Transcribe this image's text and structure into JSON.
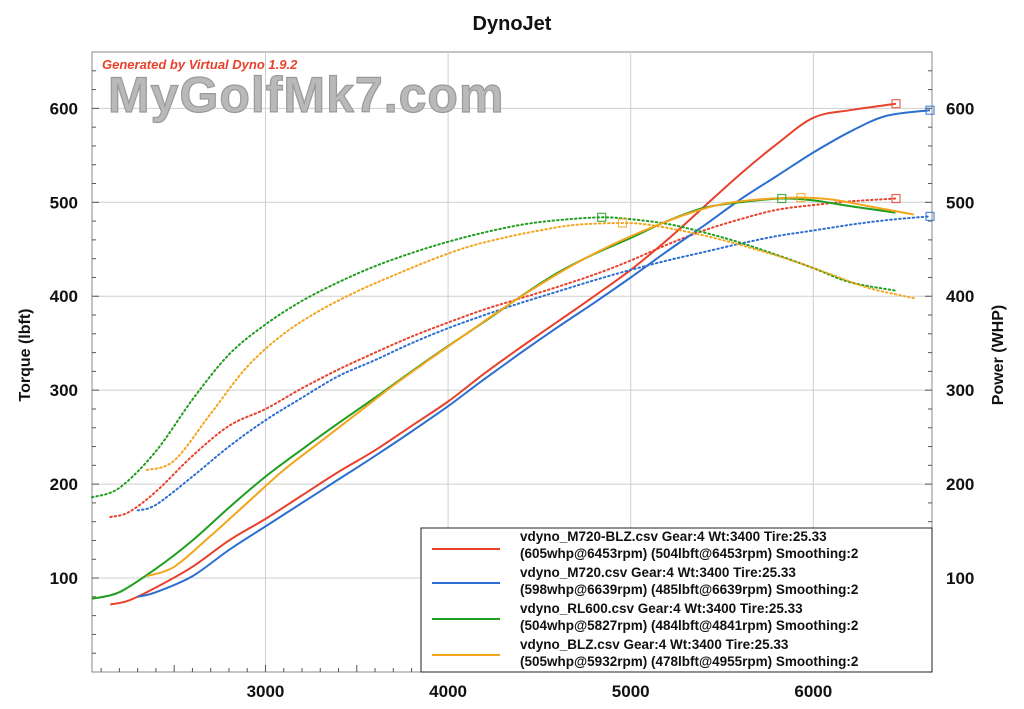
{
  "chart_data": {
    "type": "line",
    "title": "DynoJet",
    "generator": "Generated by Virtual Dyno 1.9.2",
    "watermark": "MyGolfMk7.com",
    "xlabel": "",
    "ylabel_left": "Torque (lbft)",
    "ylabel_right": "Power (WHP)",
    "xlim": [
      2050,
      6650
    ],
    "ylim": [
      0,
      660
    ],
    "x_ticks": [
      3000,
      4000,
      5000,
      6000
    ],
    "y_ticks": [
      100,
      200,
      300,
      400,
      500,
      600
    ],
    "grid": true,
    "legend_position": "bottom-right",
    "colors": {
      "red": "#e8412c",
      "blue": "#2c6fd1",
      "green": "#1f9e1f",
      "orange": "#f2a51d"
    },
    "series": [
      {
        "name": "vdyno_M720-BLZ.csv",
        "color": "#e8412c",
        "legend_line1": "vdyno_M720-BLZ.csv Gear:4 Wt:3400 Tire:25.33",
        "legend_line2": "(605whp@6453rpm) (504lbft@6453rpm) Smoothing:2",
        "power": [
          [
            2150,
            72
          ],
          [
            2250,
            76
          ],
          [
            2400,
            90
          ],
          [
            2600,
            112
          ],
          [
            2800,
            140
          ],
          [
            3000,
            163
          ],
          [
            3200,
            188
          ],
          [
            3400,
            213
          ],
          [
            3600,
            236
          ],
          [
            3800,
            262
          ],
          [
            4000,
            288
          ],
          [
            4200,
            318
          ],
          [
            4400,
            346
          ],
          [
            4600,
            373
          ],
          [
            4800,
            400
          ],
          [
            5000,
            428
          ],
          [
            5200,
            460
          ],
          [
            5400,
            495
          ],
          [
            5600,
            530
          ],
          [
            5800,
            562
          ],
          [
            6000,
            590
          ],
          [
            6200,
            598
          ],
          [
            6453,
            605
          ]
        ],
        "torque": [
          [
            2150,
            165
          ],
          [
            2250,
            170
          ],
          [
            2400,
            192
          ],
          [
            2600,
            230
          ],
          [
            2800,
            262
          ],
          [
            3000,
            280
          ],
          [
            3200,
            302
          ],
          [
            3400,
            322
          ],
          [
            3600,
            340
          ],
          [
            3800,
            357
          ],
          [
            4000,
            372
          ],
          [
            4200,
            386
          ],
          [
            4400,
            398
          ],
          [
            4600,
            410
          ],
          [
            4800,
            423
          ],
          [
            5000,
            438
          ],
          [
            5200,
            455
          ],
          [
            5400,
            470
          ],
          [
            5600,
            482
          ],
          [
            5800,
            492
          ],
          [
            6000,
            497
          ],
          [
            6200,
            501
          ],
          [
            6453,
            504
          ]
        ],
        "peak_power": [
          6453,
          605
        ],
        "peak_torque": [
          6453,
          504
        ]
      },
      {
        "name": "vdyno_M720.csv",
        "color": "#2c6fd1",
        "legend_line1": "vdyno_M720.csv Gear:4 Wt:3400 Tire:25.33",
        "legend_line2": "(598whp@6639rpm) (485lbft@6639rpm) Smoothing:2",
        "power": [
          [
            2300,
            80
          ],
          [
            2400,
            85
          ],
          [
            2600,
            102
          ],
          [
            2800,
            130
          ],
          [
            3000,
            155
          ],
          [
            3200,
            180
          ],
          [
            3400,
            205
          ],
          [
            3600,
            230
          ],
          [
            3800,
            256
          ],
          [
            4000,
            283
          ],
          [
            4200,
            312
          ],
          [
            4400,
            340
          ],
          [
            4600,
            367
          ],
          [
            4800,
            393
          ],
          [
            5000,
            420
          ],
          [
            5200,
            448
          ],
          [
            5400,
            475
          ],
          [
            5600,
            503
          ],
          [
            5800,
            528
          ],
          [
            6000,
            553
          ],
          [
            6200,
            575
          ],
          [
            6400,
            592
          ],
          [
            6639,
            598
          ]
        ],
        "torque": [
          [
            2300,
            172
          ],
          [
            2400,
            178
          ],
          [
            2600,
            208
          ],
          [
            2800,
            240
          ],
          [
            3000,
            268
          ],
          [
            3200,
            292
          ],
          [
            3400,
            315
          ],
          [
            3600,
            332
          ],
          [
            3800,
            350
          ],
          [
            4000,
            366
          ],
          [
            4200,
            380
          ],
          [
            4400,
            393
          ],
          [
            4600,
            405
          ],
          [
            4800,
            417
          ],
          [
            5000,
            428
          ],
          [
            5200,
            438
          ],
          [
            5400,
            447
          ],
          [
            5600,
            456
          ],
          [
            5800,
            464
          ],
          [
            6000,
            470
          ],
          [
            6200,
            476
          ],
          [
            6400,
            481
          ],
          [
            6639,
            485
          ]
        ],
        "peak_power": [
          6639,
          598
        ],
        "peak_torque": [
          6639,
          485
        ]
      },
      {
        "name": "vdyno_RL600.csv",
        "color": "#1f9e1f",
        "legend_line1": "vdyno_RL600.csv Gear:4 Wt:3400 Tire:25.33",
        "legend_line2": "(504whp@5827rpm) (484lbft@4841rpm) Smoothing:2",
        "power": [
          [
            2050,
            78
          ],
          [
            2200,
            85
          ],
          [
            2400,
            110
          ],
          [
            2600,
            140
          ],
          [
            2800,
            175
          ],
          [
            3000,
            208
          ],
          [
            3200,
            237
          ],
          [
            3400,
            265
          ],
          [
            3600,
            292
          ],
          [
            3800,
            320
          ],
          [
            4000,
            347
          ],
          [
            4200,
            373
          ],
          [
            4400,
            400
          ],
          [
            4600,
            425
          ],
          [
            4800,
            445
          ],
          [
            5000,
            462
          ],
          [
            5200,
            480
          ],
          [
            5400,
            494
          ],
          [
            5600,
            500
          ],
          [
            5827,
            504
          ],
          [
            6000,
            502
          ],
          [
            6200,
            496
          ],
          [
            6450,
            489
          ]
        ],
        "torque": [
          [
            2050,
            186
          ],
          [
            2200,
            196
          ],
          [
            2400,
            235
          ],
          [
            2600,
            290
          ],
          [
            2800,
            338
          ],
          [
            3000,
            370
          ],
          [
            3200,
            395
          ],
          [
            3400,
            415
          ],
          [
            3600,
            432
          ],
          [
            3800,
            446
          ],
          [
            4000,
            458
          ],
          [
            4200,
            468
          ],
          [
            4400,
            476
          ],
          [
            4600,
            481
          ],
          [
            4841,
            484
          ],
          [
            5000,
            482
          ],
          [
            5200,
            477
          ],
          [
            5400,
            468
          ],
          [
            5600,
            457
          ],
          [
            5800,
            444
          ],
          [
            6000,
            430
          ],
          [
            6200,
            415
          ],
          [
            6450,
            406
          ]
        ],
        "peak_power": [
          5827,
          504
        ],
        "peak_torque": [
          4841,
          484
        ]
      },
      {
        "name": "vdyno_BLZ.csv",
        "color": "#f2a51d",
        "legend_line1": "vdyno_BLZ.csv Gear:4 Wt:3400 Tire:25.33",
        "legend_line2": "(505whp@5932rpm) (478lbft@4955rpm) Smoothing:2",
        "power": [
          [
            2350,
            102
          ],
          [
            2500,
            112
          ],
          [
            2700,
            145
          ],
          [
            2900,
            180
          ],
          [
            3100,
            215
          ],
          [
            3300,
            245
          ],
          [
            3500,
            275
          ],
          [
            3700,
            305
          ],
          [
            3900,
            333
          ],
          [
            4100,
            360
          ],
          [
            4300,
            387
          ],
          [
            4500,
            412
          ],
          [
            4700,
            435
          ],
          [
            4900,
            455
          ],
          [
            5100,
            472
          ],
          [
            5300,
            487
          ],
          [
            5500,
            498
          ],
          [
            5700,
            503
          ],
          [
            5932,
            505
          ],
          [
            6100,
            503
          ],
          [
            6300,
            496
          ],
          [
            6550,
            487
          ]
        ],
        "torque": [
          [
            2350,
            215
          ],
          [
            2500,
            225
          ],
          [
            2700,
            275
          ],
          [
            2900,
            325
          ],
          [
            3100,
            360
          ],
          [
            3300,
            385
          ],
          [
            3500,
            405
          ],
          [
            3700,
            422
          ],
          [
            3900,
            438
          ],
          [
            4100,
            452
          ],
          [
            4300,
            462
          ],
          [
            4500,
            470
          ],
          [
            4700,
            476
          ],
          [
            4955,
            478
          ],
          [
            5100,
            476
          ],
          [
            5300,
            469
          ],
          [
            5500,
            460
          ],
          [
            5700,
            449
          ],
          [
            5900,
            437
          ],
          [
            6100,
            423
          ],
          [
            6300,
            409
          ],
          [
            6500,
            400
          ],
          [
            6550,
            398
          ]
        ],
        "peak_power": [
          5932,
          505
        ],
        "peak_torque": [
          4955,
          478
        ]
      }
    ]
  }
}
